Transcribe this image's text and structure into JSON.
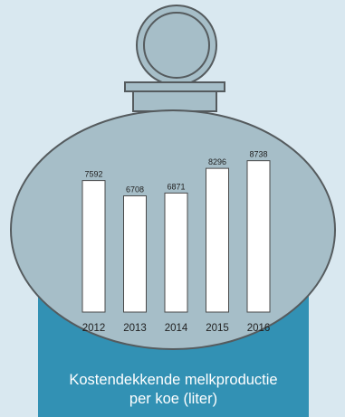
{
  "chart_data": {
    "type": "bar",
    "categories": [
      "2012",
      "2013",
      "2014",
      "2015",
      "2016"
    ],
    "values": [
      7592,
      6708,
      6871,
      8296,
      8738
    ],
    "title": "",
    "xlabel": "Kostendekkende melkproductie per koe (liter)",
    "ylabel": "",
    "ylim": [
      0,
      10000
    ],
    "grid": false,
    "legend": "none",
    "colors": {
      "bar_fill": "#ffffff",
      "bar_stroke": "#4a4a4a",
      "tank_body": "#a6bec8",
      "tank_outline": "#555b5e",
      "base_panel": "#3291b4",
      "background": "#d9e8f0"
    }
  },
  "caption": {
    "line1": "Kostendekkende melkproductie",
    "line2": "per koe (liter)"
  }
}
